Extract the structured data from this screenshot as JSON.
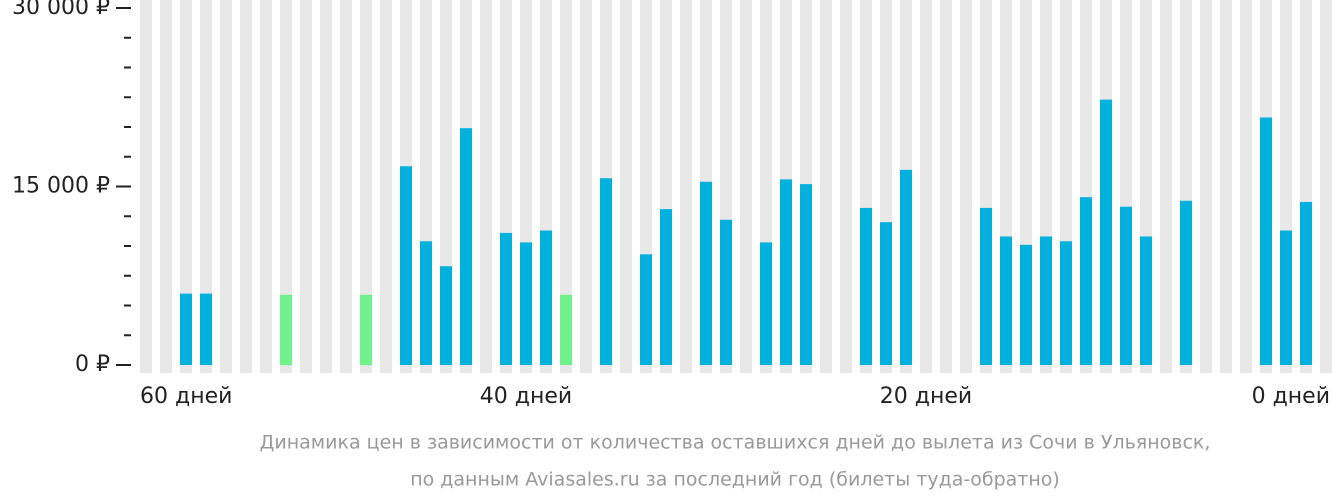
{
  "chart_data": {
    "type": "bar",
    "categories": [
      "60 дней",
      null,
      null,
      null,
      null,
      null,
      null,
      null,
      null,
      null,
      null,
      null,
      null,
      null,
      null,
      null,
      null,
      null,
      null,
      "40 дней",
      null,
      null,
      null,
      null,
      null,
      null,
      null,
      null,
      null,
      null,
      null,
      null,
      null,
      null,
      null,
      null,
      null,
      null,
      null,
      "20 дней",
      null,
      null,
      null,
      null,
      null,
      null,
      null,
      null,
      null,
      null,
      null,
      null,
      null,
      null,
      null,
      null,
      null,
      null,
      null,
      "0 дней"
    ],
    "series": [
      {
        "color": "#00b1de",
        "values": [
          null,
          null,
          6000,
          6000,
          null,
          null,
          null,
          null,
          null,
          null,
          null,
          null,
          null,
          16700,
          10400,
          8300,
          19900,
          null,
          11100,
          10300,
          11300,
          null,
          null,
          15700,
          null,
          9300,
          13100,
          null,
          15400,
          12200,
          null,
          10300,
          15600,
          15200,
          null,
          null,
          13200,
          12000,
          16400,
          null,
          null,
          null,
          13200,
          10800,
          10100,
          10800,
          10400,
          14100,
          22300,
          13300,
          10800,
          null,
          13800,
          null,
          null,
          null,
          20800,
          11300,
          13700,
          null
        ]
      },
      {
        "color": "#6ff18b",
        "values": [
          null,
          null,
          null,
          null,
          null,
          null,
          null,
          5900,
          null,
          null,
          null,
          5900,
          null,
          null,
          null,
          null,
          null,
          null,
          null,
          null,
          null,
          5900,
          null,
          null,
          null,
          null,
          null,
          null,
          null,
          null,
          null,
          null,
          null,
          null,
          null,
          null,
          null,
          null,
          null,
          null,
          null,
          null,
          null,
          null,
          null,
          null,
          null,
          null,
          null,
          null,
          null,
          null,
          null,
          null,
          null,
          null,
          null,
          null,
          null,
          null
        ]
      }
    ],
    "ylim": [
      0,
      30000
    ],
    "yticks": [
      {
        "value": 0,
        "label": "0 ₽"
      },
      {
        "value": 15000,
        "label": "15 000 ₽"
      },
      {
        "value": 30000,
        "label": "30 000 ₽"
      }
    ],
    "yminorticks": [
      2500,
      5000,
      7500,
      10000,
      12500,
      17500,
      20000,
      22500,
      25000,
      27500
    ],
    "caption": [
      "Динамика цен в зависимости от количества оставшихся дней до вылета из Сочи в Ульяновск,",
      "по данным Aviasales.ru за последний год (билеты туда-обратно)"
    ]
  }
}
